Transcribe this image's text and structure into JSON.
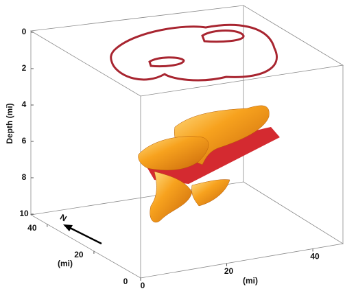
{
  "axes": {
    "depth": {
      "label": "Depth (mi)",
      "lim": [
        0,
        10
      ],
      "ticks": [
        0,
        2,
        4,
        6,
        8,
        10
      ]
    },
    "y": {
      "label": "(mi)",
      "lim": [
        0,
        47
      ],
      "ticks": [
        0,
        20,
        40
      ]
    },
    "x": {
      "label": "(mi)",
      "lim": [
        0,
        47
      ],
      "ticks": [
        0,
        20,
        40
      ]
    }
  },
  "north": "N"
}
